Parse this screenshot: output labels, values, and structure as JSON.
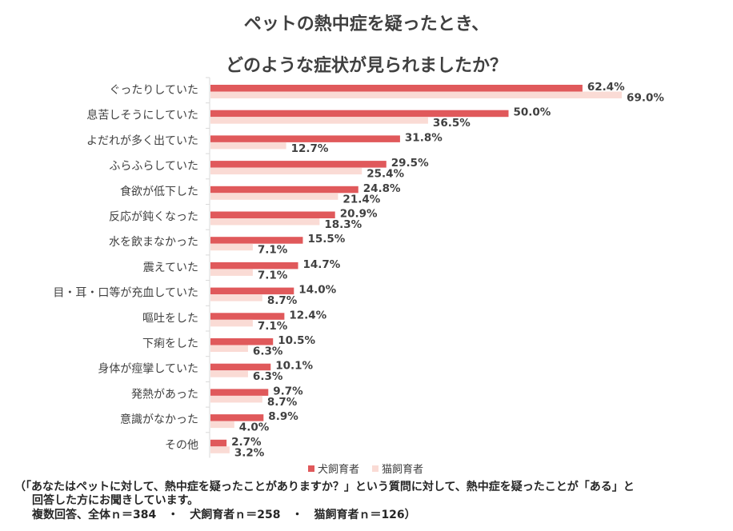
{
  "title_line1": "ペットの熱中症を疑ったとき、",
  "title_line2": "どのような症状が見られましたか？",
  "legend": {
    "dog_label": "犬飼育者",
    "cat_label": "猫飼育者"
  },
  "colors": {
    "dog": "#E0595B",
    "cat": "#FADBD5",
    "axis": "#D9D9D9",
    "text": "#404040"
  },
  "note": {
    "line1": "（「あなたはペットに対して、熱中症を疑ったことがありますか？」という質問に対して、熱中症を疑ったことが「ある」と",
    "line2": "回答した方にお聞きしています。",
    "line3": "複数回答、全体ｎ＝384　・　犬飼育者ｎ＝258　・　猫飼育者ｎ＝126）"
  },
  "chart_data": {
    "type": "bar",
    "orientation": "horizontal",
    "title": "ペットの熱中症を疑ったとき、どのような症状が見られましたか？",
    "categories": [
      "ぐったりしていた",
      "息苦しそうにしていた",
      "よだれが多く出ていた",
      "ふらふらしていた",
      "食欲が低下した",
      "反応が鈍くなった",
      "水を飲まなかった",
      "震えていた",
      "目・耳・口等が充血していた",
      "嘔吐をした",
      "下痢をした",
      "身体が痙攣していた",
      "発熱があった",
      "意識がなかった",
      "その他"
    ],
    "series": [
      {
        "name": "犬飼育者",
        "values": [
          62.4,
          50.0,
          31.8,
          29.5,
          24.8,
          20.9,
          15.5,
          14.7,
          14.0,
          12.4,
          10.5,
          10.1,
          9.7,
          8.9,
          2.7
        ]
      },
      {
        "name": "猫飼育者",
        "values": [
          69.0,
          36.5,
          12.7,
          25.4,
          21.4,
          18.3,
          7.1,
          7.1,
          8.7,
          7.1,
          6.3,
          6.3,
          8.7,
          4.0,
          3.2
        ]
      }
    ],
    "unit": "%",
    "xlim": [
      0,
      100
    ]
  }
}
